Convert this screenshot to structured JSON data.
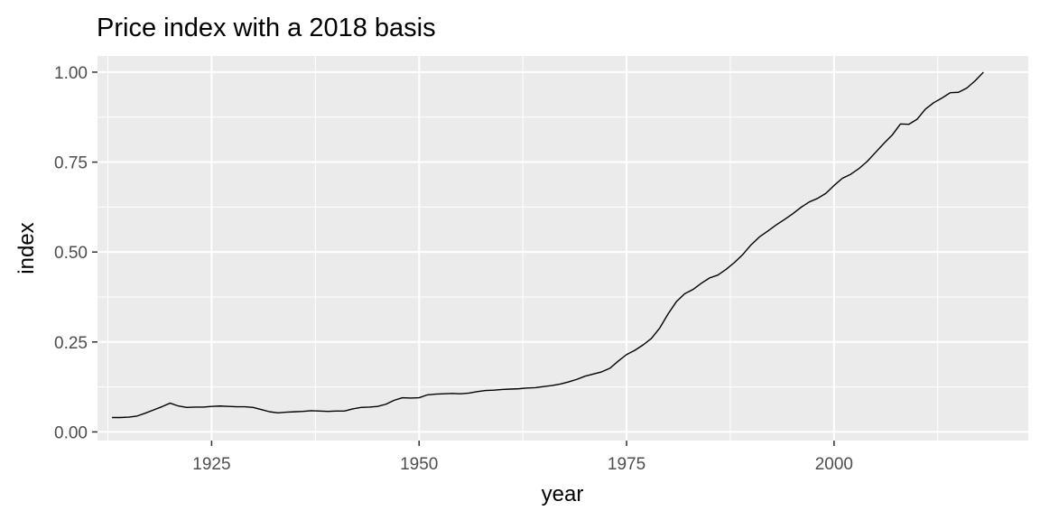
{
  "chart_data": {
    "type": "line",
    "title": "Price index with a 2018 basis",
    "xlabel": "year",
    "ylabel": "index",
    "xlim": [
      1911.75,
      1919.25
    ],
    "xlim_full": [
      1911.25,
      2023.4
    ],
    "ylim": [
      -0.024,
      1.045
    ],
    "grid": true,
    "legend": "none",
    "colors": {
      "panel": "#ebebeb",
      "grid": "#ffffff",
      "line": "#000000",
      "tick_text": "#4d4d4d"
    },
    "x_ticks": [
      {
        "value": 1925,
        "label": "1925"
      },
      {
        "value": 1950,
        "label": "1950"
      },
      {
        "value": 1975,
        "label": "1975"
      },
      {
        "value": 2000,
        "label": "2000"
      }
    ],
    "x_minor_ticks": [
      1912.5,
      1937.5,
      1962.5,
      1987.5,
      2012.5
    ],
    "y_ticks": [
      {
        "value": 0.0,
        "label": "0.00"
      },
      {
        "value": 0.25,
        "label": "0.25"
      },
      {
        "value": 0.5,
        "label": "0.50"
      },
      {
        "value": 0.75,
        "label": "0.75"
      },
      {
        "value": 1.0,
        "label": "1.00"
      }
    ],
    "y_minor_ticks": [
      0.125,
      0.375,
      0.625,
      0.875
    ],
    "series": [
      {
        "x": [
          1913,
          1914,
          1915,
          1916,
          1917,
          1918,
          1919,
          1920,
          1921,
          1922,
          1923,
          1924,
          1925,
          1926,
          1927,
          1928,
          1929,
          1930,
          1931,
          1932,
          1933,
          1934,
          1935,
          1936,
          1937,
          1938,
          1939,
          1940,
          1941,
          1942,
          1943,
          1944,
          1945,
          1946,
          1947,
          1948,
          1949,
          1950,
          1951,
          1952,
          1953,
          1954,
          1955,
          1956,
          1957,
          1958,
          1959,
          1960,
          1961,
          1962,
          1963,
          1964,
          1965,
          1966,
          1967,
          1968,
          1969,
          1970,
          1971,
          1972,
          1973,
          1974,
          1975,
          1976,
          1977,
          1978,
          1979,
          1980,
          1981,
          1982,
          1983,
          1984,
          1985,
          1986,
          1987,
          1988,
          1989,
          1990,
          1991,
          1992,
          1993,
          1994,
          1995,
          1996,
          1997,
          1998,
          1999,
          2000,
          2001,
          2002,
          2003,
          2004,
          2005,
          2006,
          2007,
          2008,
          2009,
          2010,
          2011,
          2012,
          2013,
          2014,
          2015,
          2016,
          2017,
          2018
        ],
        "values": [
          0.04,
          0.04,
          0.041,
          0.044,
          0.052,
          0.061,
          0.07,
          0.08,
          0.072,
          0.068,
          0.069,
          0.069,
          0.071,
          0.072,
          0.071,
          0.07,
          0.07,
          0.068,
          0.062,
          0.056,
          0.053,
          0.055,
          0.056,
          0.057,
          0.059,
          0.058,
          0.057,
          0.058,
          0.058,
          0.064,
          0.068,
          0.069,
          0.071,
          0.077,
          0.088,
          0.095,
          0.094,
          0.095,
          0.103,
          0.105,
          0.106,
          0.107,
          0.106,
          0.108,
          0.112,
          0.115,
          0.116,
          0.118,
          0.119,
          0.12,
          0.122,
          0.123,
          0.126,
          0.129,
          0.133,
          0.139,
          0.146,
          0.155,
          0.161,
          0.167,
          0.177,
          0.197,
          0.215,
          0.227,
          0.242,
          0.26,
          0.289,
          0.328,
          0.362,
          0.384,
          0.396,
          0.413,
          0.428,
          0.436,
          0.452,
          0.471,
          0.493,
          0.52,
          0.542,
          0.558,
          0.575,
          0.59,
          0.606,
          0.624,
          0.639,
          0.649,
          0.663,
          0.685,
          0.705,
          0.716,
          0.732,
          0.752,
          0.777,
          0.802,
          0.825,
          0.856,
          0.855,
          0.869,
          0.897,
          0.915,
          0.928,
          0.943,
          0.944,
          0.956,
          0.976,
          1.0
        ]
      }
    ]
  }
}
